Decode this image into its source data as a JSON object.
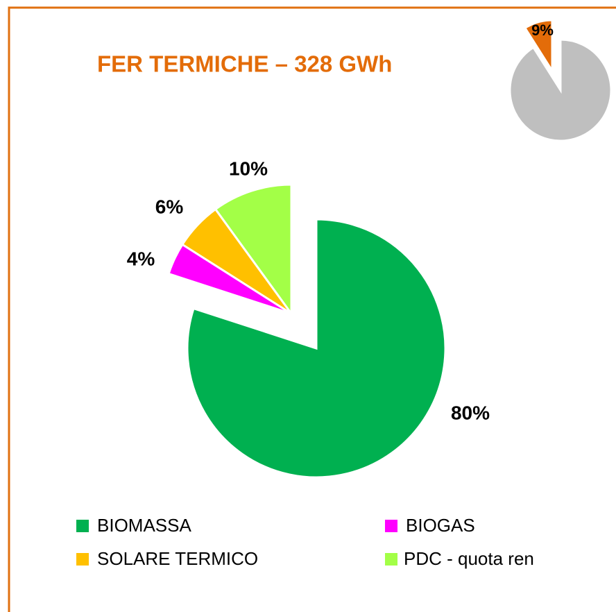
{
  "chart_data": [
    {
      "type": "pie",
      "title": "FER TERMICHE – 328 GWh",
      "categories": [
        "BIOMASSA",
        "BIOGAS",
        "SOLARE TERMICO",
        "PDC - quota ren"
      ],
      "values": [
        80,
        4,
        6,
        10
      ],
      "value_labels": [
        "80%",
        "4%",
        "6%",
        "10%"
      ],
      "colors": [
        "#00B050",
        "#FF00FF",
        "#FFC000",
        "#A3FF47"
      ]
    },
    {
      "type": "pie",
      "values": [
        91,
        9
      ],
      "value_labels": [
        null,
        "9%"
      ],
      "colors": [
        "#BFBFBF",
        "#E36C09"
      ]
    }
  ]
}
